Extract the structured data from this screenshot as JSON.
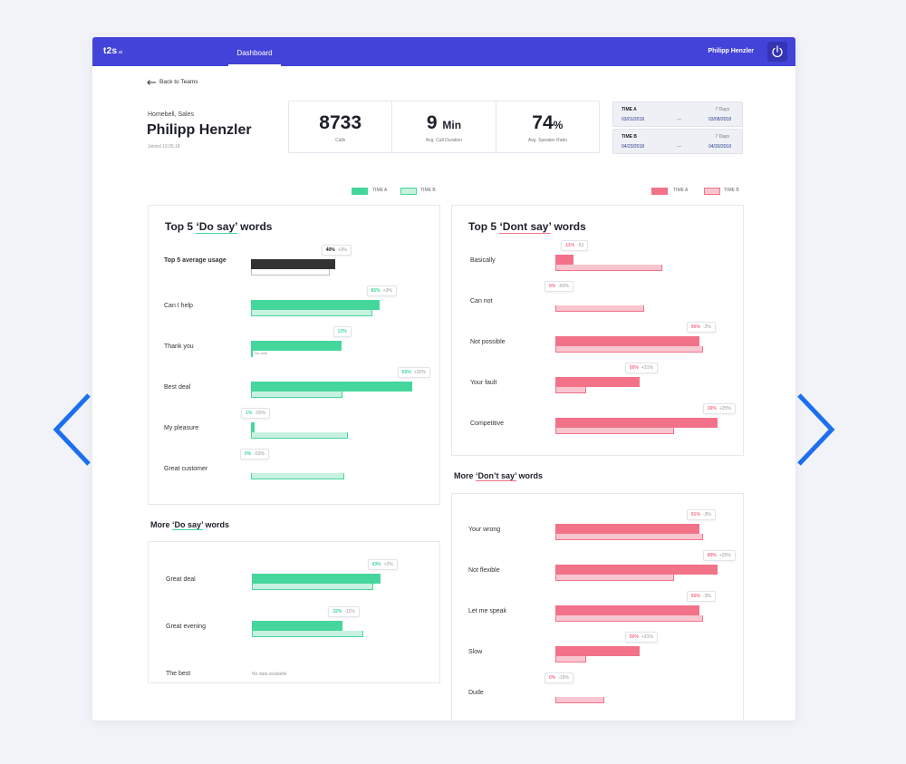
{
  "colors": {
    "brand": "#4343d9",
    "green_a": "#45d69c",
    "green_b": "#c8f2df",
    "red_a": "#f27289",
    "red_b": "#f9c6d0",
    "dark_a": "#333333",
    "dark_b": "#bdbdbd",
    "arrow": "#1e6ff0"
  },
  "app": {
    "logo": "t2s",
    "logo_suffix": ".ai",
    "tab": "Dashboard",
    "user": "Philipp Henzler",
    "power_icon": "power-icon"
  },
  "nav": {
    "back": "Back to Teams"
  },
  "profile": {
    "company": "Homebell, Sales",
    "name": "Philipp Henzler",
    "joined": "Joined 10.05.18"
  },
  "stats": [
    {
      "value": "8733",
      "unit": "",
      "label": "Calls"
    },
    {
      "value": "9",
      "unit": "Min",
      "label": "Avg. Call Duration"
    },
    {
      "value": "74",
      "unit": "%",
      "label": "Avg. Speaker Ratio"
    }
  ],
  "time_ranges": [
    {
      "name": "TIME A",
      "days": "7 Days",
      "start": "03/01/2018",
      "dash": "—",
      "end": "03/08/2018"
    },
    {
      "name": "TIME B",
      "days": "7 Days",
      "start": "04/23/2018",
      "dash": "—",
      "end": "04/30/2018"
    }
  ],
  "legend": {
    "time_a": "TIME A",
    "time_b": "TIME B"
  },
  "do_say": {
    "title_prefix": "Top 5 ",
    "title_word": "‘Do say’",
    "title_suffix": " words",
    "rows": [
      {
        "label": "Top 5 average usage",
        "a": 0.52,
        "b": 0.49,
        "pct": "40%",
        "delta": "+3%",
        "dark": true
      },
      {
        "label": "Can I help",
        "a": 0.8,
        "b": 0.75,
        "pct": "85%",
        "delta": "+3%"
      },
      {
        "label": "Thank you",
        "a": 0.56,
        "b": 0.0,
        "pct": "13%",
        "delta": "",
        "b_note": "No data"
      },
      {
        "label": "Best deal",
        "a": 1.0,
        "b": 0.57,
        "pct": "65%",
        "delta": "+32%"
      },
      {
        "label": "My pleasure",
        "a": 0.02,
        "b": 0.6,
        "pct": "1%",
        "delta": "-55%"
      },
      {
        "label": "Great customer",
        "a": 0.0,
        "b": 0.58,
        "pct": "0%",
        "delta": "-53%"
      }
    ]
  },
  "more_do_say": {
    "title_prefix": "More ",
    "title_word": "‘Do say’",
    "title_suffix": " words",
    "rows": [
      {
        "label": "Great deal",
        "a": 0.8,
        "b": 0.75,
        "pct": "43%",
        "delta": "+3%"
      },
      {
        "label": "Great evening",
        "a": 0.56,
        "b": 0.69,
        "pct": "32%",
        "delta": "-11%"
      },
      {
        "label": "The best",
        "nodata": "No data available"
      }
    ]
  },
  "dont_say": {
    "title_prefix": "Top 5 ",
    "title_word": "‘Dont say’",
    "title_suffix": " words",
    "rows": [
      {
        "label": "Basically",
        "a": 0.11,
        "b": 0.66,
        "pct": "11%",
        "delta": "-53"
      },
      {
        "label": "Can not",
        "a": 0.0,
        "b": 0.55,
        "pct": "0%",
        "delta": "-60%"
      },
      {
        "label": "Not possible",
        "a": 0.89,
        "b": 0.91,
        "pct": "90%",
        "delta": "-2%"
      },
      {
        "label": "Your fault",
        "a": 0.52,
        "b": 0.19,
        "pct": "50%",
        "delta": "+31%"
      },
      {
        "label": "Competitive",
        "a": 1.0,
        "b": 0.73,
        "pct": "30%",
        "delta": "+25%"
      }
    ]
  },
  "more_dont_say": {
    "title_prefix": "More ",
    "title_word": "‘Don’t say’",
    "title_suffix": " words",
    "rows": [
      {
        "label": "Your wrong",
        "a": 0.89,
        "b": 0.91,
        "pct": "91%",
        "delta": "-3%"
      },
      {
        "label": "Not flexible",
        "a": 1.0,
        "b": 0.73,
        "pct": "80%",
        "delta": "+25%"
      },
      {
        "label": "Let me speak",
        "a": 0.89,
        "b": 0.91,
        "pct": "60%",
        "delta": "-3%"
      },
      {
        "label": "Slow",
        "a": 0.52,
        "b": 0.19,
        "pct": "50%",
        "delta": "+31%"
      },
      {
        "label": "Dude",
        "a": 0.0,
        "b": 0.3,
        "pct": "0%",
        "delta": "-19%"
      }
    ]
  }
}
